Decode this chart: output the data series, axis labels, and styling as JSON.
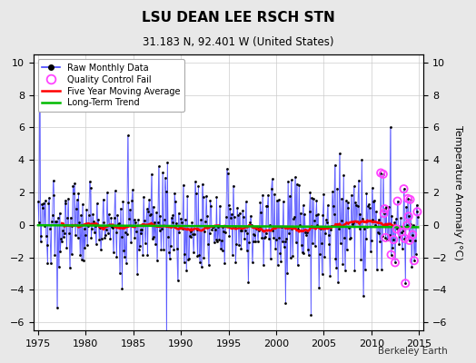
{
  "title": "LSU DEAN LEE RSCH STN",
  "subtitle": "31.183 N, 92.401 W (United States)",
  "ylabel": "Temperature Anomaly (°C)",
  "watermark": "Berkeley Earth",
  "xlim": [
    1974.5,
    2015.5
  ],
  "ylim": [
    -6.5,
    10.5
  ],
  "yticks": [
    -6,
    -4,
    -2,
    0,
    2,
    4,
    6,
    8,
    10
  ],
  "xticks": [
    1975,
    1980,
    1985,
    1990,
    1995,
    2000,
    2005,
    2010,
    2015
  ],
  "bg_color": "#e8e8e8",
  "plot_bg_color": "#ffffff",
  "line_color": "#4444ff",
  "dot_color": "#000000",
  "ma_color": "#ff0000",
  "trend_color": "#00bb00",
  "qc_color": "#ff44ff",
  "seed": 137,
  "n_months": 480,
  "start_year": 1975.0,
  "ma_window": 60,
  "n_qc_fails": 22,
  "qc_start_year": 2011.0
}
